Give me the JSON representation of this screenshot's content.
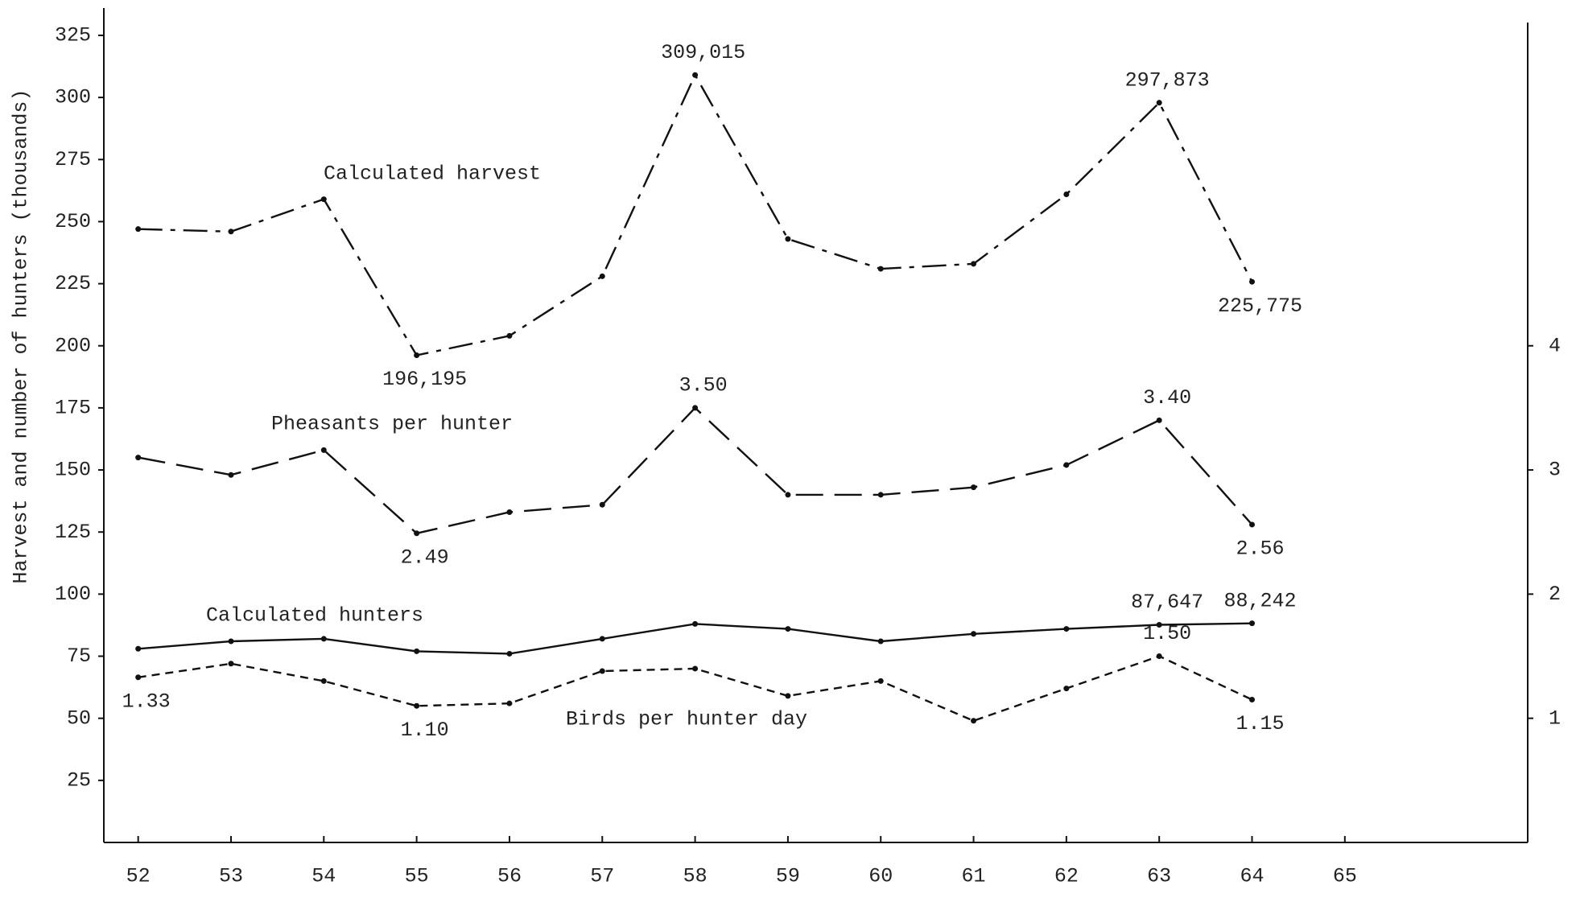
{
  "chart_data": {
    "type": "line",
    "y_label": "Harvest and number of hunters (thousands)",
    "x": [
      52,
      53,
      54,
      55,
      56,
      57,
      58,
      59,
      60,
      61,
      62,
      63,
      64
    ],
    "xlim": [
      51.63,
      66.97
    ],
    "xticks": [
      52,
      53,
      54,
      55,
      56,
      57,
      58,
      59,
      60,
      61,
      62,
      63,
      64,
      65
    ],
    "ylim": [
      0,
      336
    ],
    "yticks": [
      25,
      50,
      75,
      100,
      125,
      150,
      175,
      200,
      225,
      250,
      275,
      300,
      325
    ],
    "y2lim": [
      0,
      6.72
    ],
    "y2ticks": [
      1,
      2,
      3,
      4
    ],
    "series": [
      {
        "name": "Calculated harvest",
        "color": "#111111",
        "values": [
          247,
          246,
          259,
          196.195,
          204,
          228,
          309.015,
          243,
          231,
          233,
          261,
          297.873,
          225.775
        ],
        "value_labels": [
          null,
          null,
          null,
          "196,195",
          null,
          null,
          "309,015",
          null,
          null,
          null,
          null,
          "297,873",
          "225,775"
        ]
      },
      {
        "name": "Pheasants per hunter",
        "color": "#111111",
        "axis": "y2",
        "values": [
          3.1,
          2.96,
          3.16,
          2.49,
          2.66,
          2.72,
          3.5,
          2.8,
          2.8,
          2.86,
          3.04,
          3.4,
          2.56
        ],
        "value_labels": [
          null,
          null,
          null,
          "2.49",
          null,
          null,
          "3.50",
          null,
          null,
          null,
          null,
          "3.40",
          "2.56"
        ]
      },
      {
        "name": "Calculated hunters",
        "color": "#111111",
        "values": [
          78,
          81,
          82,
          77,
          76,
          82,
          88,
          86,
          81,
          84,
          86,
          87.647,
          88.242
        ],
        "value_labels": [
          null,
          null,
          null,
          null,
          null,
          null,
          null,
          null,
          null,
          null,
          null,
          "87,647",
          "88,242"
        ]
      },
      {
        "name": "Birds per hunter day",
        "color": "#111111",
        "axis": "y2",
        "values": [
          1.33,
          1.44,
          1.3,
          1.1,
          1.12,
          1.38,
          1.4,
          1.18,
          1.3,
          0.98,
          1.24,
          1.5,
          1.15
        ],
        "value_labels": [
          "1.33",
          null,
          null,
          "1.10",
          null,
          null,
          null,
          null,
          null,
          null,
          null,
          "1.50",
          "1.15"
        ]
      }
    ]
  }
}
